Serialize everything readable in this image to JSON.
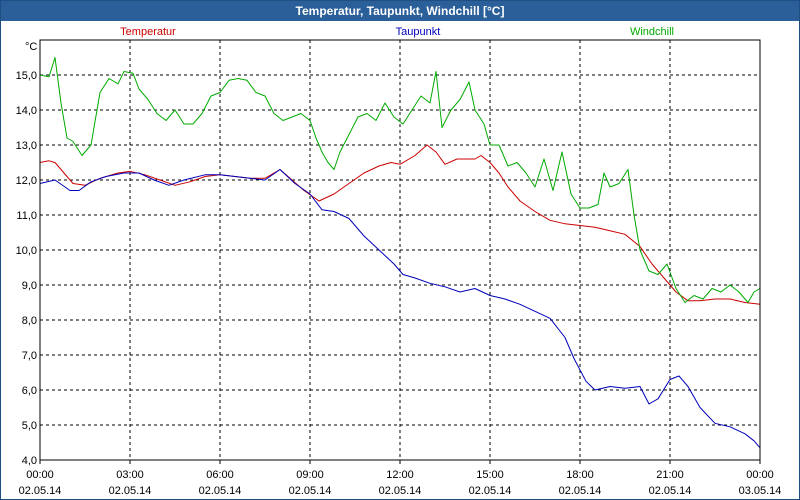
{
  "chart_data": {
    "type": "line",
    "title": "Temperatur, Taupunkt, Windchill [°C]",
    "ylabel": "°C",
    "ylim": [
      4.0,
      16.0
    ],
    "yticks": [
      "4,0",
      "5,0",
      "6,0",
      "7,0",
      "8,0",
      "9,0",
      "10,0",
      "11,0",
      "12,0",
      "13,0",
      "14,0",
      "15,0"
    ],
    "xlim": [
      0,
      24
    ],
    "xticks": [
      {
        "time": "00:00",
        "date": "02.05.14"
      },
      {
        "time": "03:00",
        "date": "02.05.14"
      },
      {
        "time": "06:00",
        "date": "02.05.14"
      },
      {
        "time": "09:00",
        "date": "02.05.14"
      },
      {
        "time": "12:00",
        "date": "02.05.14"
      },
      {
        "time": "15:00",
        "date": "02.05.14"
      },
      {
        "time": "18:00",
        "date": "02.05.14"
      },
      {
        "time": "21:00",
        "date": "02.05.14"
      },
      {
        "time": "00:00",
        "date": "03.05.14"
      }
    ],
    "grid": true,
    "series": [
      {
        "name": "Temperatur",
        "color": "#cc0000",
        "points": [
          [
            0,
            12.5
          ],
          [
            0.3,
            12.55
          ],
          [
            0.5,
            12.5
          ],
          [
            0.8,
            12.2
          ],
          [
            1.1,
            11.9
          ],
          [
            1.5,
            11.85
          ],
          [
            2.0,
            12.05
          ],
          [
            2.6,
            12.2
          ],
          [
            3.0,
            12.25
          ],
          [
            3.5,
            12.15
          ],
          [
            4.0,
            12.0
          ],
          [
            4.5,
            11.85
          ],
          [
            5.0,
            11.95
          ],
          [
            5.5,
            12.1
          ],
          [
            6.0,
            12.15
          ],
          [
            6.5,
            12.1
          ],
          [
            7.0,
            12.05
          ],
          [
            7.5,
            12.05
          ],
          [
            8.0,
            12.3
          ],
          [
            8.4,
            12.0
          ],
          [
            8.8,
            11.7
          ],
          [
            9.3,
            11.4
          ],
          [
            9.8,
            11.6
          ],
          [
            10.3,
            11.9
          ],
          [
            10.8,
            12.2
          ],
          [
            11.3,
            12.4
          ],
          [
            11.7,
            12.5
          ],
          [
            12.0,
            12.45
          ],
          [
            12.5,
            12.7
          ],
          [
            12.9,
            13.0
          ],
          [
            13.2,
            12.8
          ],
          [
            13.5,
            12.45
          ],
          [
            13.9,
            12.6
          ],
          [
            14.5,
            12.6
          ],
          [
            14.7,
            12.7
          ],
          [
            15.0,
            12.5
          ],
          [
            15.3,
            12.2
          ],
          [
            15.6,
            11.8
          ],
          [
            16.0,
            11.4
          ],
          [
            16.5,
            11.1
          ],
          [
            17.0,
            10.85
          ],
          [
            17.5,
            10.75
          ],
          [
            18.0,
            10.7
          ],
          [
            18.5,
            10.65
          ],
          [
            19.0,
            10.55
          ],
          [
            19.5,
            10.45
          ],
          [
            20.0,
            10.1
          ],
          [
            20.4,
            9.6
          ],
          [
            20.8,
            9.2
          ],
          [
            21.2,
            8.8
          ],
          [
            21.6,
            8.55
          ],
          [
            22.0,
            8.55
          ],
          [
            22.5,
            8.6
          ],
          [
            23.0,
            8.6
          ],
          [
            23.5,
            8.5
          ],
          [
            24.0,
            8.45
          ]
        ]
      },
      {
        "name": "Taupunkt",
        "color": "#0000bb",
        "points": [
          [
            0,
            11.9
          ],
          [
            0.5,
            12.0
          ],
          [
            1.0,
            11.7
          ],
          [
            1.3,
            11.7
          ],
          [
            1.7,
            11.95
          ],
          [
            2.2,
            12.1
          ],
          [
            2.8,
            12.2
          ],
          [
            3.3,
            12.2
          ],
          [
            3.8,
            12.0
          ],
          [
            4.3,
            11.85
          ],
          [
            4.8,
            12.0
          ],
          [
            5.5,
            12.15
          ],
          [
            6.0,
            12.15
          ],
          [
            6.5,
            12.1
          ],
          [
            7.0,
            12.05
          ],
          [
            7.5,
            12.0
          ],
          [
            8.0,
            12.3
          ],
          [
            8.5,
            11.9
          ],
          [
            9.0,
            11.6
          ],
          [
            9.4,
            11.15
          ],
          [
            9.8,
            11.1
          ],
          [
            10.3,
            10.9
          ],
          [
            10.8,
            10.4
          ],
          [
            11.3,
            10.0
          ],
          [
            11.8,
            9.6
          ],
          [
            12.1,
            9.3
          ],
          [
            12.5,
            9.2
          ],
          [
            13.0,
            9.05
          ],
          [
            13.5,
            8.95
          ],
          [
            14.0,
            8.8
          ],
          [
            14.5,
            8.9
          ],
          [
            15.0,
            8.7
          ],
          [
            15.5,
            8.6
          ],
          [
            16.0,
            8.45
          ],
          [
            16.5,
            8.25
          ],
          [
            17.0,
            8.05
          ],
          [
            17.5,
            7.5
          ],
          [
            17.8,
            6.9
          ],
          [
            18.2,
            6.25
          ],
          [
            18.5,
            6.0
          ],
          [
            19.0,
            6.1
          ],
          [
            19.5,
            6.05
          ],
          [
            20.0,
            6.1
          ],
          [
            20.3,
            5.6
          ],
          [
            20.6,
            5.75
          ],
          [
            21.0,
            6.3
          ],
          [
            21.3,
            6.4
          ],
          [
            21.6,
            6.1
          ],
          [
            22.0,
            5.5
          ],
          [
            22.5,
            5.05
          ],
          [
            23.0,
            4.95
          ],
          [
            23.5,
            4.75
          ],
          [
            23.8,
            4.55
          ],
          [
            24.0,
            4.35
          ]
        ]
      },
      {
        "name": "Windchill",
        "color": "#00aa00",
        "points": [
          [
            0,
            15.0
          ],
          [
            0.3,
            14.95
          ],
          [
            0.5,
            15.5
          ],
          [
            0.7,
            14.2
          ],
          [
            0.9,
            13.2
          ],
          [
            1.1,
            13.1
          ],
          [
            1.4,
            12.7
          ],
          [
            1.7,
            13.0
          ],
          [
            2.0,
            14.5
          ],
          [
            2.3,
            14.9
          ],
          [
            2.6,
            14.75
          ],
          [
            2.8,
            15.1
          ],
          [
            3.1,
            15.05
          ],
          [
            3.3,
            14.6
          ],
          [
            3.6,
            14.3
          ],
          [
            3.9,
            13.9
          ],
          [
            4.2,
            13.7
          ],
          [
            4.5,
            14.0
          ],
          [
            4.8,
            13.6
          ],
          [
            5.1,
            13.6
          ],
          [
            5.4,
            13.9
          ],
          [
            5.7,
            14.4
          ],
          [
            6.0,
            14.5
          ],
          [
            6.3,
            14.85
          ],
          [
            6.6,
            14.9
          ],
          [
            6.9,
            14.85
          ],
          [
            7.2,
            14.5
          ],
          [
            7.5,
            14.4
          ],
          [
            7.8,
            13.9
          ],
          [
            8.1,
            13.7
          ],
          [
            8.4,
            13.8
          ],
          [
            8.7,
            13.9
          ],
          [
            9.0,
            13.7
          ],
          [
            9.2,
            13.2
          ],
          [
            9.4,
            12.8
          ],
          [
            9.6,
            12.5
          ],
          [
            9.8,
            12.3
          ],
          [
            10.0,
            12.8
          ],
          [
            10.3,
            13.3
          ],
          [
            10.6,
            13.8
          ],
          [
            10.9,
            13.9
          ],
          [
            11.2,
            13.7
          ],
          [
            11.5,
            14.2
          ],
          [
            11.8,
            13.8
          ],
          [
            12.1,
            13.6
          ],
          [
            12.4,
            14.0
          ],
          [
            12.7,
            14.4
          ],
          [
            13.0,
            14.2
          ],
          [
            13.2,
            15.1
          ],
          [
            13.4,
            13.5
          ],
          [
            13.7,
            14.0
          ],
          [
            14.0,
            14.3
          ],
          [
            14.3,
            14.8
          ],
          [
            14.5,
            14.0
          ],
          [
            14.8,
            13.6
          ],
          [
            15.0,
            13.0
          ],
          [
            15.3,
            13.0
          ],
          [
            15.6,
            12.4
          ],
          [
            15.9,
            12.5
          ],
          [
            16.2,
            12.2
          ],
          [
            16.5,
            11.8
          ],
          [
            16.8,
            12.6
          ],
          [
            17.1,
            11.7
          ],
          [
            17.4,
            12.8
          ],
          [
            17.7,
            11.6
          ],
          [
            18.0,
            11.2
          ],
          [
            18.3,
            11.2
          ],
          [
            18.6,
            11.3
          ],
          [
            18.8,
            12.2
          ],
          [
            19.0,
            11.8
          ],
          [
            19.3,
            11.9
          ],
          [
            19.6,
            12.3
          ],
          [
            19.8,
            11.0
          ],
          [
            20.0,
            10.0
          ],
          [
            20.3,
            9.4
          ],
          [
            20.6,
            9.3
          ],
          [
            20.9,
            9.6
          ],
          [
            21.2,
            8.9
          ],
          [
            21.5,
            8.5
          ],
          [
            21.8,
            8.7
          ],
          [
            22.1,
            8.6
          ],
          [
            22.4,
            8.9
          ],
          [
            22.7,
            8.8
          ],
          [
            23.0,
            9.0
          ],
          [
            23.3,
            8.8
          ],
          [
            23.6,
            8.5
          ],
          [
            23.8,
            8.8
          ],
          [
            24.0,
            8.9
          ]
        ]
      }
    ]
  }
}
